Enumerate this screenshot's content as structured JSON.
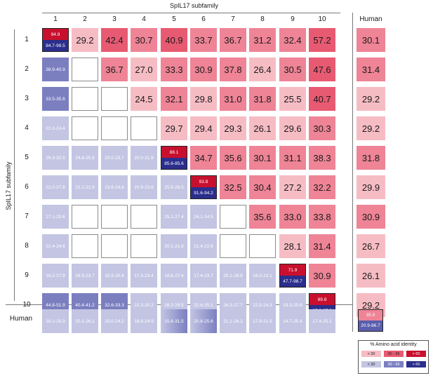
{
  "col_header_title": "SpIL17 subfamily",
  "row_header_title": "SpIL17 subfamily",
  "col_labels": [
    "1",
    "2",
    "3",
    "4",
    "5",
    "6",
    "7",
    "8",
    "9",
    "10"
  ],
  "row_labels": [
    "1",
    "2",
    "3",
    "4",
    "5",
    "6",
    "7",
    "8",
    "9",
    "10"
  ],
  "human_label": "Human",
  "human_row_label": "Human",
  "matrix": [
    [
      {
        "diag": true,
        "top": "94.9",
        "bottom": "84.7-99.5"
      },
      "29.2",
      "42.4",
      "30.7",
      "40.9",
      "33.7",
      "36.7",
      "31.2",
      "32.4",
      "57.2"
    ],
    [
      "38.9-40.9",
      null,
      "36.7",
      "27.0",
      "33.3",
      "30.9",
      "37.8",
      "26.4",
      "30.5",
      "47.6"
    ],
    [
      "33.5-35.6",
      null,
      null,
      "24.5",
      "32.1",
      "29.8",
      "31.0",
      "31.8",
      "25.5",
      "40.7"
    ],
    [
      "22.2-24.4",
      null,
      null,
      null,
      "29.7",
      "29.4",
      "29.3",
      "26.1",
      "29.6",
      "30.3"
    ],
    [
      "29.3-32.5",
      "24.8-25.8",
      "23.0-23.7",
      "20.0-21.9",
      {
        "diag": true,
        "top": "88.1",
        "bottom": "85.6-85.6"
      },
      "34.7",
      "35.6",
      "30.1",
      "31.1",
      "38.3"
    ],
    [
      "22.0-27.8",
      "22.2-22.9",
      "23.6-24.8",
      "20.9-23.6",
      "25.9-28.5",
      {
        "diag": true,
        "top": "93.8",
        "bottom": "91.6-94.2"
      },
      "32.5",
      "30.4",
      "27.2",
      "32.2"
    ],
    [
      "27.1-29.6",
      null,
      null,
      null,
      "25.1-27.4",
      "24.1-24.5",
      null,
      "35.6",
      "33.0",
      "33.8"
    ],
    [
      "22.4-24.6",
      null,
      null,
      null,
      "20.1-21.8",
      "21.4-22.6",
      null,
      null,
      "28.1",
      "31.4"
    ],
    [
      "16.2-27.9",
      "18.9-23.7",
      "15.5-20.8",
      "17.3-23.4",
      "18.6-27.4",
      "17.4-23.7",
      "20.1-28.9",
      "18.0-23.1",
      {
        "diag": true,
        "top": "71.9",
        "bottom": "47.7-98.7"
      },
      "30.9"
    ],
    [
      "44.8-51.9",
      "40.4-41.2",
      "32.6-33.3",
      "22.3-25.2",
      "28.2-29.5",
      "22.6-25.1",
      "26.3-27.7",
      "22.5-24.3",
      "19.3-25.6",
      {
        "diag": true,
        "top": "89.8",
        "bottom": "87.3-87.3"
      }
    ]
  ],
  "human_col": [
    "30.1",
    "31.4",
    "29.2",
    "29.2",
    "31.8",
    "29.9",
    "30.9",
    "26.7",
    "26.1",
    "29.2"
  ],
  "human_row": [
    "18.1-25.9",
    "20.1-26.1",
    "20.0-24.2",
    "18.8-24.9",
    "15.8-31.5",
    "20.8-25.6",
    "21.1-26.2",
    "17.9-21.9",
    "14.7-25.4",
    "17.4-25.1"
  ],
  "human_diag": {
    "top": "35.0",
    "bottom": "20.9-86.7"
  },
  "legend": {
    "title": "% Amino acid identity",
    "red": [
      {
        "label": "< 30",
        "color": "#f6bcc4"
      },
      {
        "label": "30 - 65",
        "color": "#e85a72"
      },
      {
        "label": "> 65",
        "color": "#c8102e"
      }
    ],
    "blue": [
      {
        "label": "< 30",
        "color": "#c3c5e3"
      },
      {
        "label": "30 - 65",
        "color": "#7b7fc0"
      },
      {
        "label": "> 65",
        "color": "#2b2e8c"
      }
    ]
  },
  "colors": {
    "red_low": "#f6bcc4",
    "red_mid": "#e85a72",
    "red_high": "#c8102e",
    "blue_low": "#c3c5e3",
    "blue_mid": "#7b7fc0",
    "blue_high": "#2b2e8c"
  }
}
